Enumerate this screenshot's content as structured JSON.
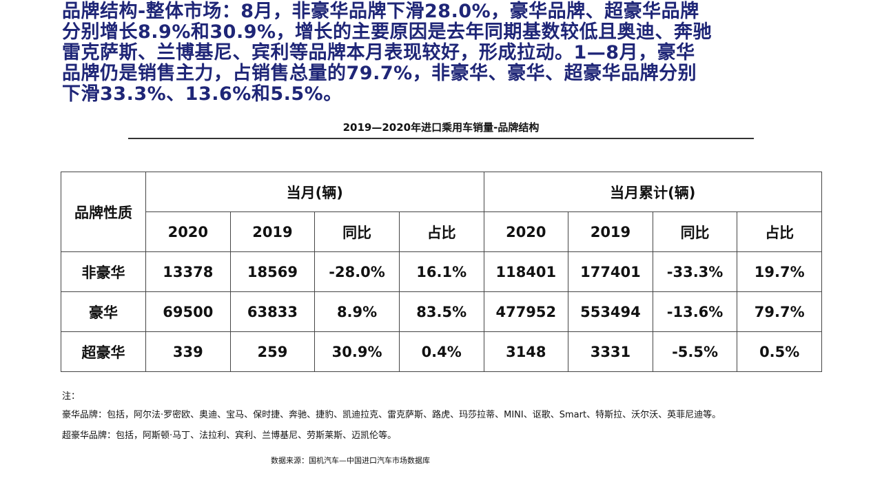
{
  "headline": {
    "lines": [
      "品牌结构-整体市场：8月，非豪华品牌下滑28.0%，豪华品牌、超豪华品牌",
      "分别增长8.9%和30.9%，增长的主要原因是去年同期基数较低且奥迪、奔驰",
      "雷克萨斯、兰博基尼、宾利等品牌本月表现较好，形成拉动。1—8月，豪华",
      "品牌仍是销售主力，占销售总量的79.7%，非豪华、豪华、超豪华品牌分别",
      "下滑33.3%、13.6%和5.5%。"
    ],
    "color": "#1f2677"
  },
  "table_title": "2019—2020年进口乘用车销量-品牌结构",
  "table": {
    "row_header": "品牌性质",
    "groups": [
      "当月(辆)",
      "当月累计(辆)"
    ],
    "columns": [
      "2020",
      "2019",
      "同比",
      "占比",
      "2020",
      "2019",
      "同比",
      "占比"
    ],
    "rows": [
      {
        "label": "非豪华",
        "cells": [
          "13378",
          "18569",
          "-28.0%",
          "16.1%",
          "118401",
          "177401",
          "-33.3%",
          "19.7%"
        ]
      },
      {
        "label": "豪华",
        "cells": [
          "69500",
          "63833",
          "8.9%",
          "83.5%",
          "477952",
          "553494",
          "-13.6%",
          "79.7%"
        ]
      },
      {
        "label": "超豪华",
        "cells": [
          "339",
          "259",
          "30.9%",
          "0.4%",
          "3148",
          "3331",
          "-5.5%",
          "0.5%"
        ]
      }
    ]
  },
  "notes": {
    "title": "注：",
    "luxury": "豪华品牌：包括，阿尔法·罗密欧、奥迪、宝马、保时捷、奔驰、捷豹、凯迪拉克、雷克萨斯、路虎、玛莎拉蒂、MINI、讴歌、Smart、特斯拉、沃尔沃、英菲尼迪等。",
    "super_luxury": "超豪华品牌：包括，阿斯顿·马丁、法拉利、宾利、兰博基尼、劳斯莱斯、迈凯伦等。"
  },
  "source": "数据来源：国机汽车—中国进口汽车市场数据库"
}
